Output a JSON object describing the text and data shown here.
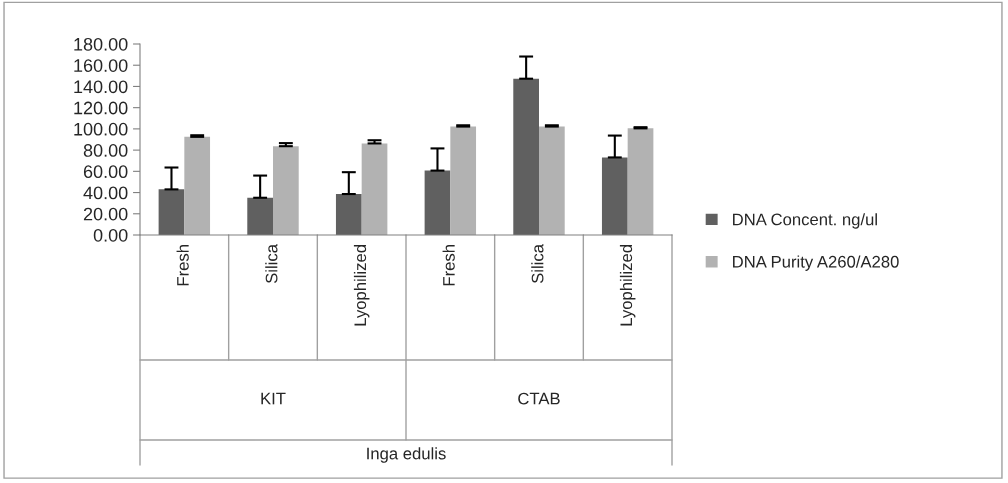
{
  "chart_data": {
    "type": "bar",
    "categories": [
      "Fresh",
      "Silica",
      "Lyophilized",
      "Fresh",
      "Silica",
      "Lyophilized"
    ],
    "series": [
      {
        "name": "DNA Concent. ng/ul",
        "color": "#606060",
        "values": [
          43.0,
          35.1,
          38.6,
          60.7,
          147.3,
          73.1
        ],
        "errors": [
          [
            43.0,
            63.6
          ],
          [
            35.1,
            56.0
          ],
          [
            38.6,
            59.2
          ],
          [
            60.7,
            81.6
          ],
          [
            147.3,
            168.2
          ],
          [
            73.1,
            93.7
          ]
        ]
      },
      {
        "name": "DNA Purity A260/A280",
        "color": "#b2b2b2",
        "values": [
          92.5,
          83.7,
          86.3,
          102.2,
          102.2,
          100.5
        ],
        "errors": [
          [
            92.5,
            94.0
          ],
          [
            83.7,
            86.6
          ],
          [
            86.3,
            89.3
          ],
          [
            102.2,
            103.4
          ],
          [
            102.2,
            103.4
          ],
          [
            100.5,
            101.6
          ]
        ]
      }
    ],
    "annotations": [
      "KIT",
      "CTAB",
      "Inga edulis"
    ],
    "ylim": [
      0,
      180
    ],
    "yticks": [
      {
        "value": 0,
        "label": "0.00"
      },
      {
        "value": 20,
        "label": "20.00"
      },
      {
        "value": 40,
        "label": "40.00"
      },
      {
        "value": 60,
        "label": "60.00"
      },
      {
        "value": 80,
        "label": "80.00"
      },
      {
        "value": 100,
        "label": "100.00"
      },
      {
        "value": 120,
        "label": "120.00"
      },
      {
        "value": 140,
        "label": "140.00"
      },
      {
        "value": 160,
        "label": "160.00"
      },
      {
        "value": 180,
        "label": "180.00"
      }
    ],
    "grid": false,
    "legend": "right"
  }
}
